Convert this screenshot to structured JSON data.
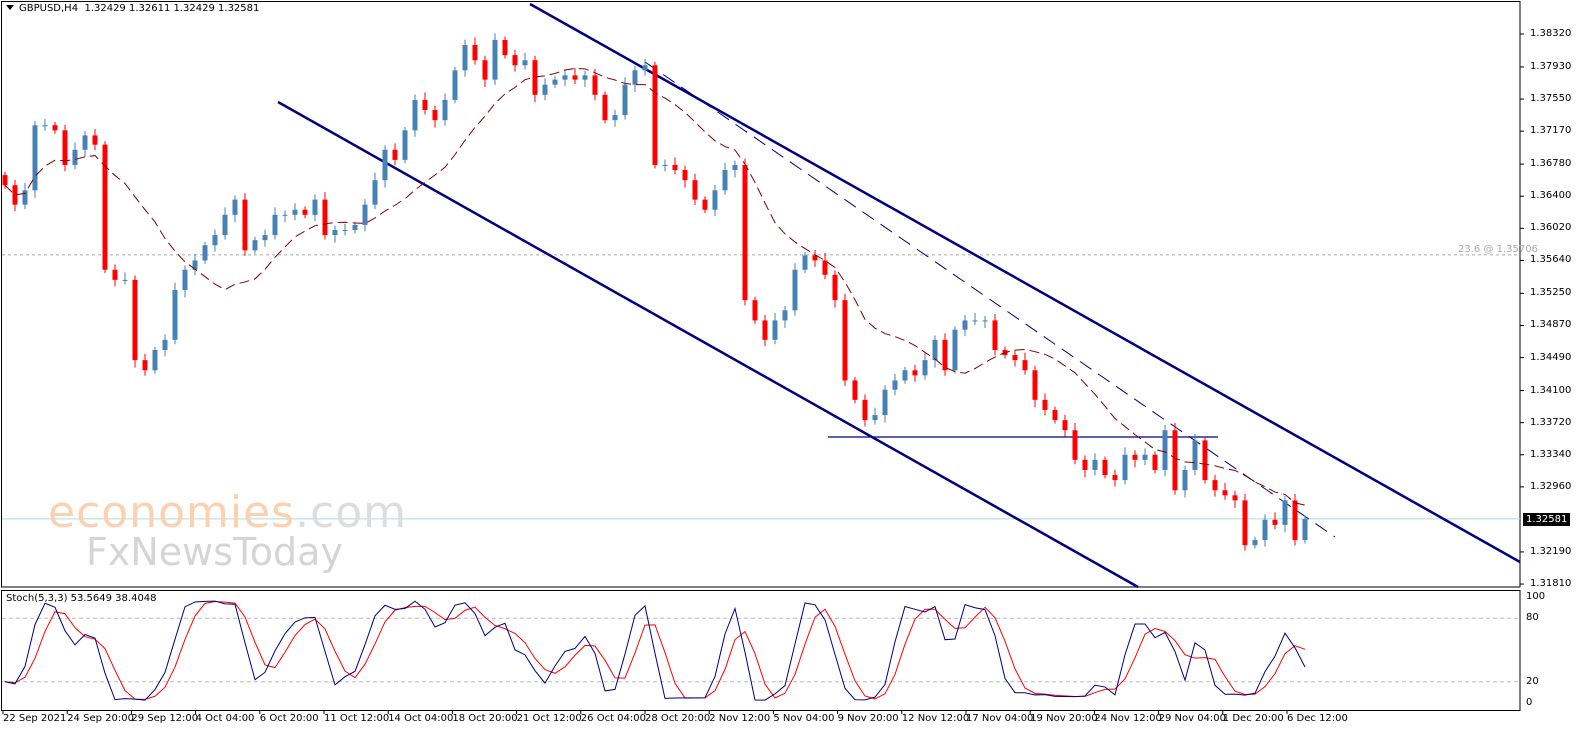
{
  "header": {
    "symbol": "GBPUSD,H4",
    "ohlc": "1.32429 1.32611 1.32429 1.32581"
  },
  "indicator": {
    "label": "Stoch(5,3,3) 53.5649 38.4048"
  },
  "watermark": {
    "text1": "economies",
    "text1b": ".com",
    "text2": "FxNewsToday"
  },
  "fib_label": "23.6 @ 1.35706",
  "colors": {
    "bull": "#4682B4",
    "bear": "#FF0000",
    "channel": "#000080",
    "ma": "#800000",
    "stoch_k": "#000080",
    "stoch_d": "#FF0000",
    "current_line": "#A8DDE0",
    "grid": "#C0C0C0"
  },
  "chart_data": {
    "type": "candlestick",
    "title": "GBPUSD,H4",
    "ylim": [
      1.3178,
      1.3867
    ],
    "y_ticks": [
      "1.38320",
      "1.37930",
      "1.37550",
      "1.37170",
      "1.36780",
      "1.36400",
      "1.36020",
      "1.35640",
      "1.35250",
      "1.34870",
      "1.34490",
      "1.34100",
      "1.33720",
      "1.33340",
      "1.32960",
      "1.32190",
      "1.31810"
    ],
    "x_ticks": [
      "22 Sep 2021",
      "24 Sep 20:00",
      "29 Sep 12:00",
      "4 Oct 04:00",
      "6 Oct 20:00",
      "11 Oct 12:00",
      "14 Oct 04:00",
      "18 Oct 20:00",
      "21 Oct 12:00",
      "26 Oct 04:00",
      "28 Oct 20:00",
      "2 Nov 12:00",
      "5 Nov 04:00",
      "9 Nov 20:00",
      "12 Nov 12:00",
      "17 Nov 04:00",
      "19 Nov 20:00",
      "24 Nov 12:00",
      "29 Nov 04:00",
      "1 Dec 20:00",
      "6 Dec 12:00"
    ],
    "current_price": "1.32581",
    "fib_level": 1.35706,
    "support_level": 1.3355,
    "closes": [
      1.3653,
      1.363,
      1.3647,
      1.3724,
      1.3724,
      1.3718,
      1.3677,
      1.3695,
      1.3712,
      1.3701,
      1.3553,
      1.3541,
      1.3541,
      1.3446,
      1.3434,
      1.3458,
      1.347,
      1.3529,
      1.3553,
      1.3564,
      1.3582,
      1.3594,
      1.3618,
      1.3636,
      1.3576,
      1.3588,
      1.3594,
      1.3618,
      1.3618,
      1.3624,
      1.3618,
      1.3636,
      1.3594,
      1.36,
      1.36,
      1.3606,
      1.363,
      1.3659,
      1.3695,
      1.3683,
      1.3718,
      1.3754,
      1.3742,
      1.373,
      1.3754,
      1.3789,
      1.3819,
      1.3801,
      1.3778,
      1.3825,
      1.3807,
      1.3795,
      1.3801,
      1.376,
      1.3772,
      1.3778,
      1.3783,
      1.3778,
      1.3783,
      1.376,
      1.373,
      1.3736,
      1.3772,
      1.3789,
      1.3795,
      1.3677,
      1.3677,
      1.3671,
      1.3659,
      1.3636,
      1.3624,
      1.3647,
      1.3671,
      1.3677,
      1.3517,
      1.3493,
      1.347,
      1.3493,
      1.3505,
      1.3553,
      1.357,
      1.3564,
      1.3547,
      1.3517,
      1.3422,
      1.3399,
      1.3375,
      1.3381,
      1.3411,
      1.3422,
      1.3434,
      1.3428,
      1.3446,
      1.347,
      1.3434,
      1.3482,
      1.3493,
      1.3493,
      1.3493,
      1.3458,
      1.3452,
      1.3446,
      1.3434,
      1.3399,
      1.3387,
      1.3375,
      1.3363,
      1.3328,
      1.3316,
      1.3328,
      1.331,
      1.3304,
      1.3334,
      1.3328,
      1.3334,
      1.3316,
      1.3363,
      1.3292,
      1.3316,
      1.3351,
      1.3304,
      1.3292,
      1.3286,
      1.328,
      1.3227,
      1.3233,
      1.3257,
      1.3251,
      1.328,
      1.3233,
      1.3258
    ],
    "stochastic": {
      "params": "5,3,3",
      "k": 53.5649,
      "d": 38.4048,
      "ylim": [
        0,
        100
      ],
      "levels": [
        20,
        80
      ],
      "y_ticks": [
        "100",
        "80",
        "20",
        "0"
      ]
    }
  }
}
